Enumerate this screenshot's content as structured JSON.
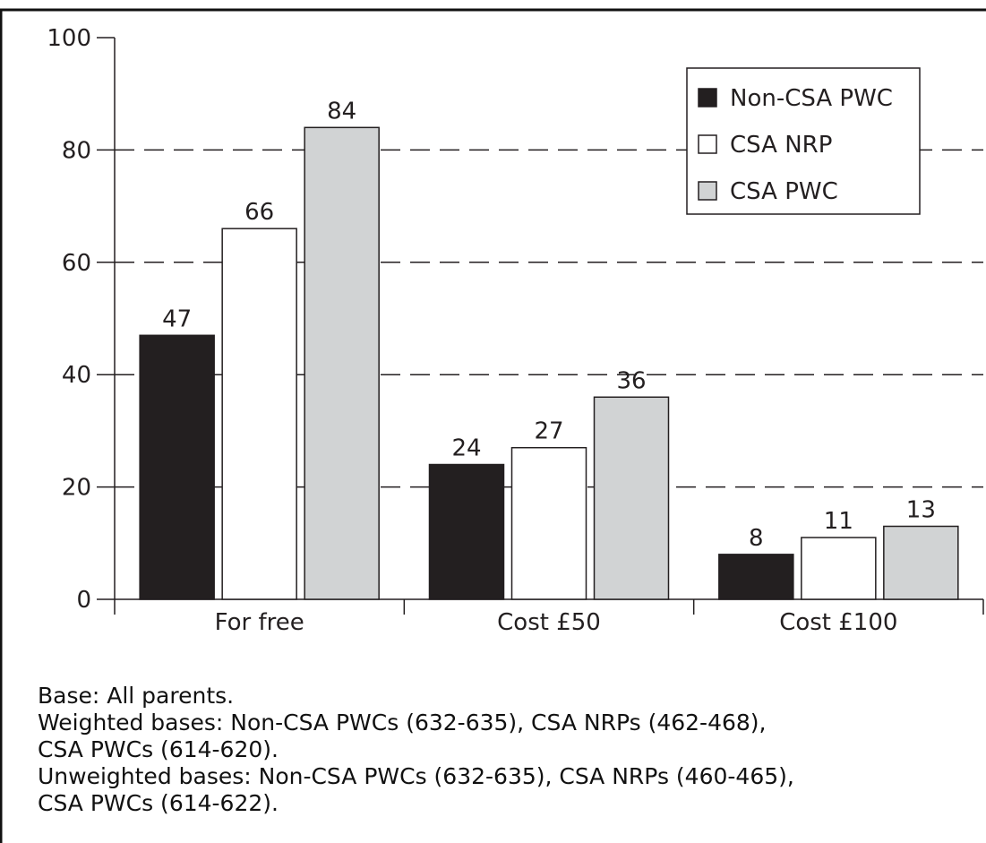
{
  "chart_data": {
    "type": "bar",
    "categories": [
      "For free",
      "Cost £50",
      "Cost £100"
    ],
    "series": [
      {
        "name": "Non-CSA PWC",
        "values": [
          47,
          24,
          8
        ],
        "color": "#231f20"
      },
      {
        "name": "CSA NRP",
        "values": [
          66,
          27,
          11
        ],
        "color": "#ffffff"
      },
      {
        "name": "CSA PWC",
        "values": [
          84,
          36,
          13
        ],
        "color": "#d1d3d4"
      }
    ],
    "ylim": [
      0,
      100
    ],
    "yticks": [
      0,
      20,
      40,
      60,
      80,
      100
    ],
    "grid": "dashed horizontal",
    "legend_position": "top-right",
    "data_labels": true
  },
  "footnote": {
    "lines": [
      "Base: All parents.",
      "Weighted bases: Non-CSA PWCs (632-635), CSA NRPs (462-468),",
      "CSA PWCs (614-620).",
      "Unweighted bases: Non-CSA PWCs (632-635), CSA NRPs (460-465),",
      "CSA PWCs (614-622)."
    ]
  }
}
